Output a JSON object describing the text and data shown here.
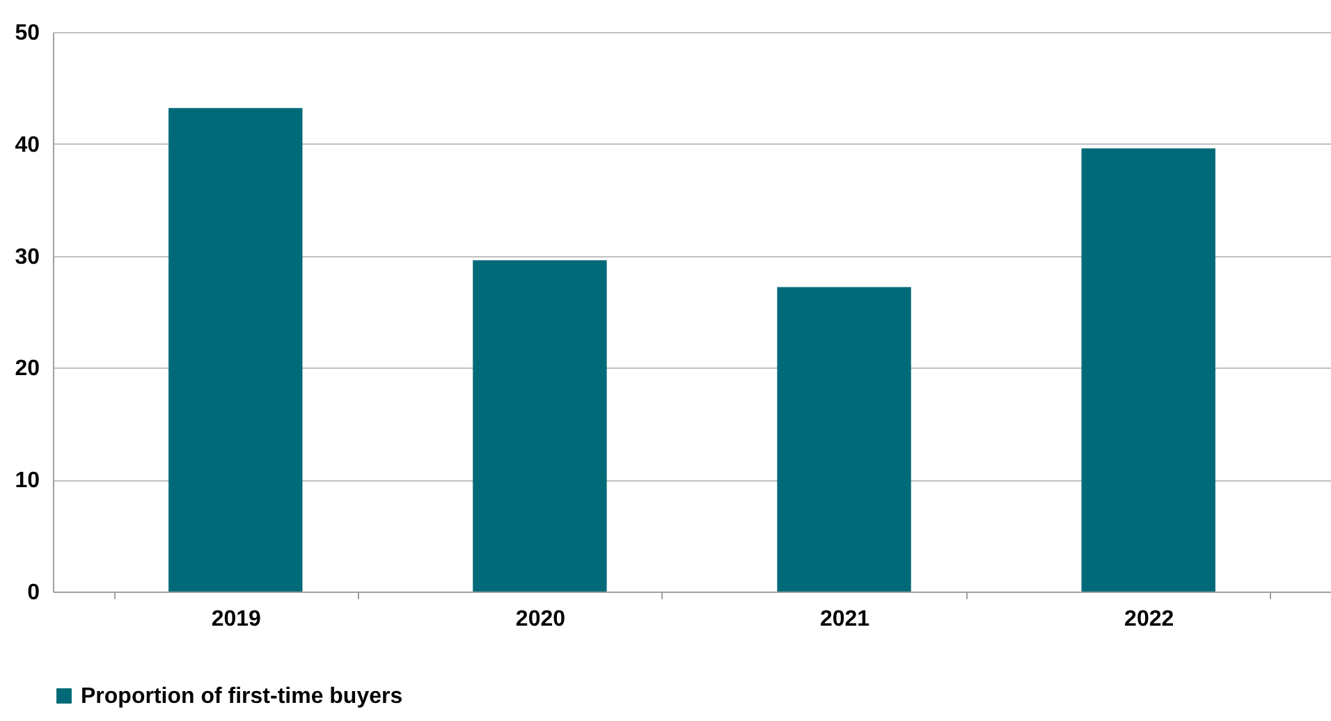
{
  "chart_data": {
    "type": "bar",
    "categories": [
      "2019",
      "2020",
      "2021",
      "2022"
    ],
    "series": [
      {
        "name": "Proportion of first-time buyers",
        "color": "#006a78",
        "values": [
          43.2,
          29.6,
          27.2,
          39.6
        ]
      }
    ],
    "ylim": [
      0,
      50
    ],
    "yticks": [
      0,
      10,
      20,
      30,
      40,
      50
    ],
    "grid": "y",
    "legend": "bottom"
  }
}
